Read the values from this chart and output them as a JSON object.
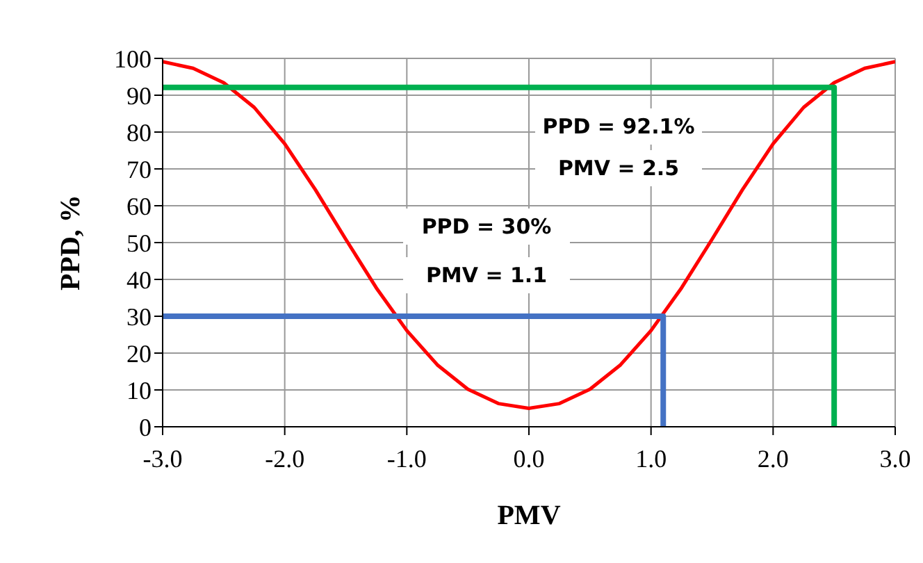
{
  "chart_data": {
    "type": "line",
    "xlabel": "PMV",
    "ylabel": "PPD, %",
    "xlim": [
      -3,
      3
    ],
    "xticks": [
      {
        "value": -3,
        "label": "-3.0"
      },
      {
        "value": -2,
        "label": "-2.0"
      },
      {
        "value": -1,
        "label": "-1.0"
      },
      {
        "value": 0,
        "label": "0.0"
      },
      {
        "value": 1,
        "label": "1.0"
      },
      {
        "value": 2,
        "label": "2.0"
      },
      {
        "value": 3,
        "label": "3.0"
      }
    ],
    "ylim": [
      0,
      100
    ],
    "yticks": [
      0,
      10,
      20,
      30,
      40,
      50,
      60,
      70,
      80,
      90,
      100
    ],
    "grid": true,
    "marker": "none",
    "line_style": "solid",
    "series": [
      {
        "color": "#ff0000",
        "x": [
          -3,
          -2.75,
          -2.5,
          -2.25,
          -2,
          -1.75,
          -1.5,
          -1.25,
          -1,
          -0.75,
          -0.5,
          -0.25,
          0,
          0.25,
          0.5,
          0.75,
          1,
          1.25,
          1.5,
          1.75,
          2,
          2.25,
          2.5,
          2.75,
          3
        ],
        "values": [
          99.1,
          97.3,
          93.4,
          86.7,
          76.8,
          64.4,
          50.9,
          37.7,
          26.1,
          16.8,
          10.2,
          6.3,
          5,
          6.3,
          10.2,
          16.8,
          26.1,
          37.7,
          50.9,
          64.4,
          76.8,
          86.7,
          93.4,
          97.3,
          99.1
        ]
      },
      {
        "color": "#00b050",
        "x": [
          -3,
          2.5,
          2.5
        ],
        "values": [
          92.1,
          92.1,
          0
        ]
      },
      {
        "color": "#4472c4",
        "x": [
          -3,
          1.1,
          1.1
        ],
        "values": [
          30,
          30,
          0
        ]
      }
    ],
    "annotations": [
      "PPD = 92.1%",
      "PMV = 2.5",
      "PPD = 30%",
      "PMV = 1.1"
    ]
  }
}
